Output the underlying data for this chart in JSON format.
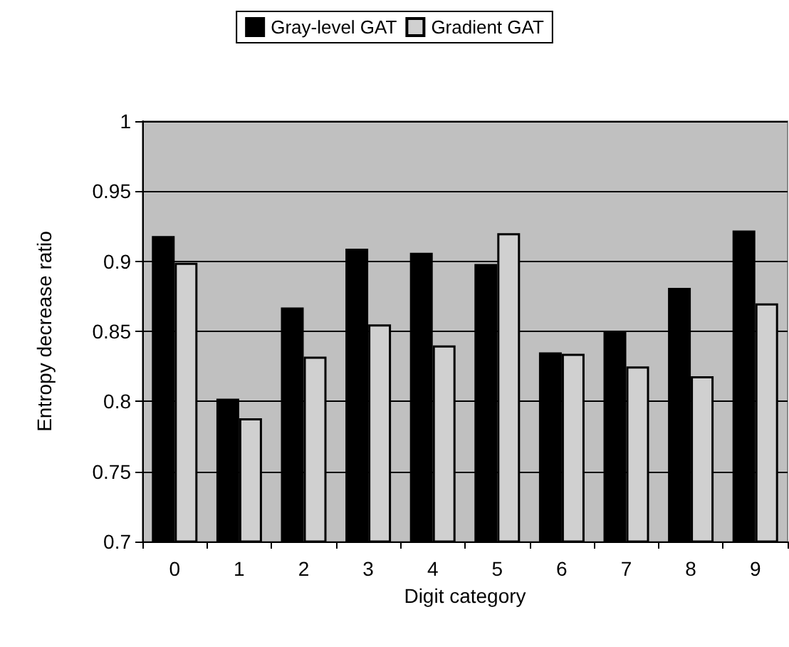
{
  "chart_data": {
    "type": "bar",
    "xlabel": "Digit category",
    "ylabel": "Entropy decrease ratio",
    "categories": [
      "0",
      "1",
      "2",
      "3",
      "4",
      "5",
      "6",
      "7",
      "8",
      "9"
    ],
    "series": [
      {
        "name": "Gray-level GAT",
        "color": "#000000",
        "values": [
          0.918,
          0.802,
          0.867,
          0.909,
          0.906,
          0.898,
          0.835,
          0.85,
          0.881,
          0.922
        ]
      },
      {
        "name": "Gradient GAT",
        "color": "#d0d0d0",
        "values": [
          0.899,
          0.788,
          0.832,
          0.855,
          0.84,
          0.92,
          0.834,
          0.825,
          0.818,
          0.87
        ]
      }
    ],
    "ylim": [
      0.7,
      1
    ],
    "yticks": [
      0.7,
      0.75,
      0.8,
      0.85,
      0.9,
      0.95,
      1
    ],
    "grid": "y",
    "legend": "top"
  }
}
